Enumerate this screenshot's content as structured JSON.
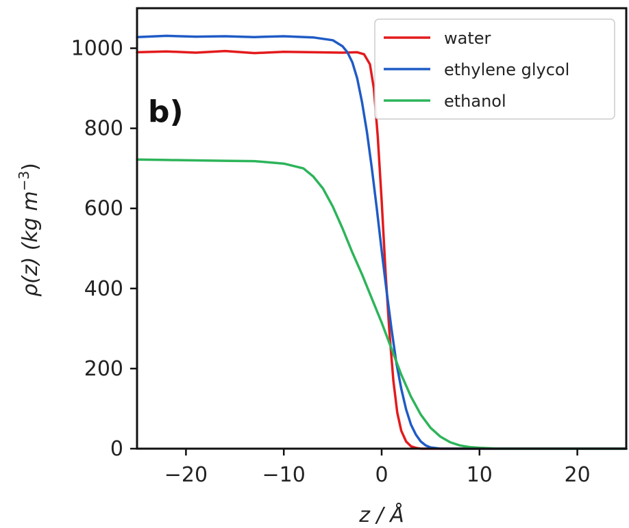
{
  "chart_data": {
    "type": "line",
    "panel_label": "b)",
    "xlabel": "z / Å",
    "ylabel": "ρ(z) (kg m",
    "ylabel_exponent": "−3",
    "ylabel_close": ")",
    "xlim": [
      -25,
      25
    ],
    "ylim": [
      0,
      1100
    ],
    "xticks": [
      -20,
      -10,
      0,
      10,
      20
    ],
    "xtick_labels": [
      "−20",
      "−10",
      "0",
      "10",
      "20"
    ],
    "yticks": [
      0,
      200,
      400,
      600,
      800,
      1000
    ],
    "ytick_labels": [
      "0",
      "200",
      "400",
      "600",
      "800",
      "1000"
    ],
    "grid": false,
    "legend_position": "top-right",
    "series": [
      {
        "name": "water",
        "color": "#e31a1c",
        "x": [
          -25,
          -22,
          -19,
          -16,
          -13,
          -10,
          -7,
          -4,
          -2.5,
          -1.8,
          -1.2,
          -0.8,
          -0.4,
          0,
          0.4,
          0.8,
          1.2,
          1.6,
          2.0,
          2.5,
          3.0,
          3.5,
          4.0,
          6,
          10,
          15,
          20,
          25
        ],
        "y": [
          990,
          992,
          989,
          993,
          988,
          991,
          990,
          989,
          990,
          985,
          960,
          900,
          780,
          620,
          440,
          290,
          170,
          90,
          45,
          18,
          6,
          2,
          0,
          0,
          0,
          0,
          0,
          0
        ]
      },
      {
        "name": "ethylene glycol",
        "color": "#1f5bc6",
        "x": [
          -25,
          -22,
          -19,
          -16,
          -13,
          -10,
          -7,
          -5,
          -4,
          -3.5,
          -3,
          -2.5,
          -2,
          -1.5,
          -1,
          -0.5,
          0,
          0.5,
          1,
          1.5,
          2,
          2.5,
          3,
          3.5,
          4,
          4.5,
          5,
          6,
          8,
          12,
          18,
          25
        ],
        "y": [
          1028,
          1031,
          1029,
          1030,
          1028,
          1030,
          1027,
          1020,
          1005,
          990,
          965,
          925,
          865,
          790,
          700,
          600,
          495,
          395,
          300,
          215,
          150,
          98,
          60,
          35,
          18,
          8,
          3,
          0,
          0,
          0,
          0,
          0
        ]
      },
      {
        "name": "ethanol",
        "color": "#2db45a",
        "x": [
          -25,
          -22,
          -19,
          -16,
          -13,
          -10,
          -8,
          -7,
          -6,
          -5,
          -4,
          -3,
          -2,
          -1,
          0,
          1,
          2,
          3,
          4,
          5,
          6,
          7,
          8,
          9,
          10,
          12,
          15,
          20,
          25
        ],
        "y": [
          722,
          721,
          720,
          719,
          718,
          712,
          700,
          680,
          650,
          605,
          550,
          490,
          435,
          375,
          315,
          250,
          185,
          130,
          85,
          52,
          30,
          16,
          8,
          4,
          2,
          0,
          0,
          0,
          0
        ]
      }
    ]
  }
}
